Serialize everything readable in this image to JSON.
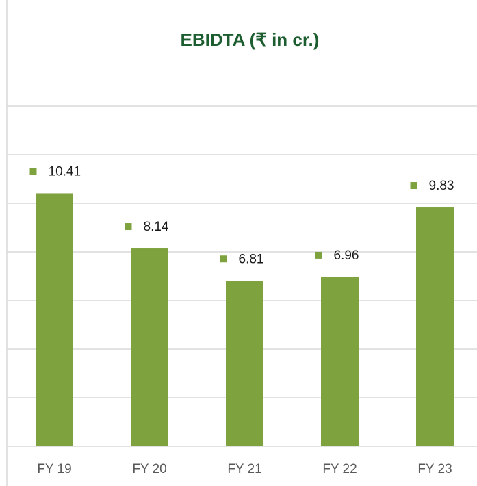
{
  "chart_data": {
    "type": "bar",
    "title": "EBIDTA (₹ in cr.)",
    "categories": [
      "FY 19",
      "FY 20",
      "FY 21",
      "FY 22",
      "FY 23"
    ],
    "values": [
      10.41,
      8.14,
      6.81,
      6.96,
      9.83
    ],
    "color": "#7ea23e",
    "ylim": [
      0,
      14
    ],
    "yticks": [
      0,
      2,
      4,
      6,
      8,
      10,
      12,
      14
    ],
    "grid": true
  }
}
